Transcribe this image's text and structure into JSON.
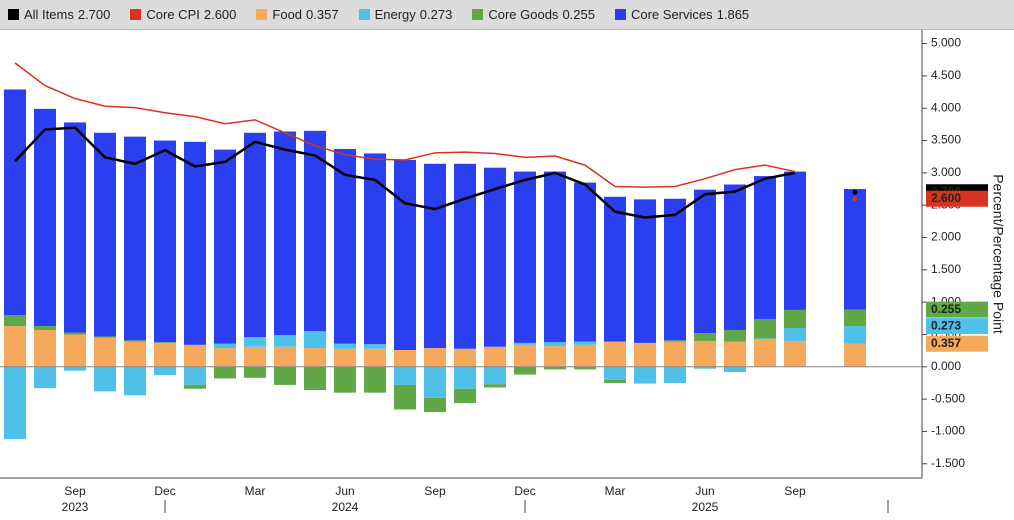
{
  "chart_data": {
    "type": "stacked-bar-line",
    "y_label": "Percent/Percentage Point",
    "categories": [
      null,
      null,
      "Sep",
      null,
      null,
      "Dec",
      null,
      null,
      "Mar",
      null,
      null,
      "Jun",
      null,
      null,
      "Sep",
      null,
      null,
      "Dec",
      null,
      null,
      "Mar",
      null,
      null,
      "Jun",
      null,
      null,
      "Sep",
      null,
      null
    ],
    "year_labels": [
      null,
      null,
      "2023",
      null,
      null,
      null,
      null,
      null,
      null,
      null,
      null,
      "2024",
      null,
      null,
      null,
      null,
      null,
      null,
      null,
      null,
      null,
      null,
      null,
      "2025",
      null,
      null,
      null,
      null,
      null
    ],
    "ylim": [
      -1.72,
      5.21
    ],
    "yticks": [
      {
        "value": 5,
        "label": "5.000"
      },
      {
        "value": 4.5,
        "label": "4.500"
      },
      {
        "value": 4,
        "label": "4.000"
      },
      {
        "value": 3.5,
        "label": "3.500"
      },
      {
        "value": 3,
        "label": "3.000"
      },
      {
        "value": 2.5,
        "label": "2.500"
      },
      {
        "value": 2,
        "label": "2.000"
      },
      {
        "value": 1.5,
        "label": "1.500"
      },
      {
        "value": 1,
        "label": "1.000"
      },
      {
        "value": 0.5,
        "label": "0.500"
      },
      {
        "value": 0,
        "label": "0.000"
      },
      {
        "value": -0.5,
        "label": "-0.500"
      },
      {
        "value": -1,
        "label": "-1.000"
      },
      {
        "value": -1.5,
        "label": "-1.500"
      }
    ],
    "series": [
      {
        "name": "All Items",
        "legend_value": "2.700",
        "kind": "line",
        "color": "#000000",
        "end_label": true,
        "values": [
          3.18,
          3.67,
          3.7,
          3.24,
          3.14,
          3.35,
          3.1,
          3.17,
          3.48,
          3.36,
          3.27,
          2.97,
          2.89,
          2.53,
          2.44,
          2.6,
          2.75,
          2.89,
          3.0,
          2.82,
          2.4,
          2.31,
          2.35,
          2.67,
          2.71,
          2.91,
          3.0,
          null,
          2.7
        ]
      },
      {
        "name": "Core CPI",
        "legend_value": "2.600",
        "kind": "line",
        "color": "#d9321f",
        "end_label": true,
        "values": [
          4.7,
          4.35,
          4.15,
          4.03,
          4.01,
          3.93,
          3.87,
          3.76,
          3.82,
          3.62,
          3.42,
          3.28,
          3.21,
          3.2,
          3.31,
          3.32,
          3.3,
          3.24,
          3.26,
          3.12,
          2.79,
          2.78,
          2.79,
          2.91,
          3.05,
          3.12,
          3.02,
          null,
          2.6
        ]
      },
      {
        "name": "Food",
        "legend_value": "0.357",
        "kind": "bar",
        "color": "#f5a95a",
        "end_label": true,
        "values": [
          0.63,
          0.57,
          0.5,
          0.45,
          0.39,
          0.37,
          0.34,
          0.29,
          0.31,
          0.31,
          0.29,
          0.28,
          0.28,
          0.26,
          0.29,
          0.28,
          0.31,
          0.34,
          0.32,
          0.34,
          0.39,
          0.37,
          0.39,
          0.4,
          0.39,
          0.42,
          0.4,
          null,
          0.357
        ]
      },
      {
        "name": "Energy",
        "legend_value": "0.273",
        "kind": "bar",
        "color": "#4fc0e8",
        "end_label": true,
        "values": [
          -1.12,
          -0.33,
          -0.06,
          -0.38,
          -0.44,
          -0.13,
          -0.28,
          0.07,
          0.15,
          0.18,
          0.26,
          0.08,
          0.07,
          -0.28,
          -0.48,
          -0.34,
          -0.27,
          0.03,
          0.06,
          0.05,
          -0.2,
          -0.26,
          -0.25,
          -0.03,
          -0.08,
          0.02,
          0.2,
          null,
          0.273
        ]
      },
      {
        "name": "Core Goods",
        "legend_value": "0.255",
        "kind": "bar",
        "color": "#5fa845",
        "end_label": true,
        "values": [
          0.17,
          0.06,
          0.03,
          0.02,
          0.02,
          0.01,
          -0.06,
          -0.18,
          -0.17,
          -0.28,
          -0.36,
          -0.4,
          -0.4,
          -0.38,
          -0.22,
          -0.22,
          -0.05,
          -0.12,
          -0.04,
          -0.04,
          -0.05,
          0.0,
          0.02,
          0.12,
          0.18,
          0.3,
          0.28,
          null,
          0.255
        ]
      },
      {
        "name": "Core Services",
        "legend_value": "1.865",
        "kind": "bar",
        "color": "#2a3ff0",
        "end_label": false,
        "values": [
          3.49,
          3.36,
          3.25,
          3.15,
          3.15,
          3.12,
          3.14,
          3.0,
          3.16,
          3.15,
          3.1,
          3.01,
          2.95,
          2.94,
          2.85,
          2.86,
          2.77,
          2.65,
          2.64,
          2.46,
          2.24,
          2.22,
          2.19,
          2.22,
          2.25,
          2.21,
          2.14,
          null,
          1.865
        ]
      }
    ]
  }
}
